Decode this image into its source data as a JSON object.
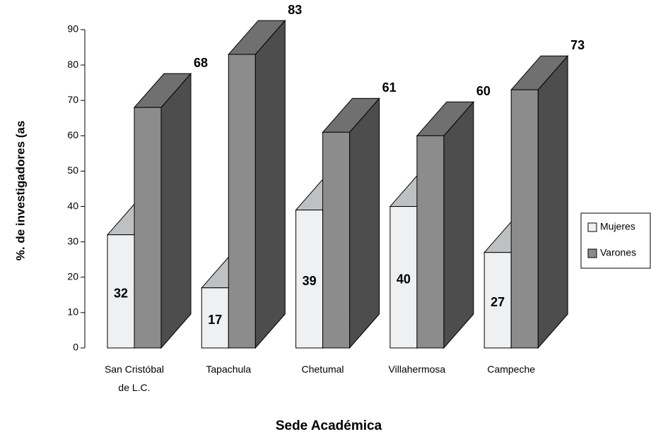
{
  "chart_data": {
    "type": "bar3d",
    "y_label": "%. de investigadores (as",
    "x_label": "Sede Académica",
    "categories": [
      "San Cristóbal de L.C.",
      "Tapachula",
      "Chetumal",
      "Villahermosa",
      "Campeche"
    ],
    "series": [
      {
        "name": "Mujeres",
        "color": "#eef0f2",
        "values": [
          32,
          17,
          39,
          40,
          27
        ]
      },
      {
        "name": "Varones",
        "color": "#8c8c8c",
        "values": [
          68,
          83,
          61,
          60,
          73
        ]
      }
    ],
    "ylim": [
      0,
      90
    ],
    "yticks": [
      0,
      10,
      20,
      30,
      40,
      50,
      60,
      70,
      80,
      90
    ],
    "legend": "right"
  }
}
